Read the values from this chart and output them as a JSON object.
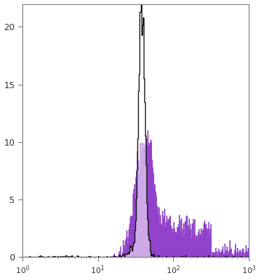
{
  "xlim": [
    1,
    1000
  ],
  "ylim": [
    0,
    22
  ],
  "yticks": [
    0,
    5,
    10,
    15,
    20
  ],
  "xtick_positions": [
    1,
    10,
    100,
    1000
  ],
  "background_color": "#ffffff",
  "purple_color": "#7B20C0",
  "purple_light_color": "#d4aaee",
  "black_color": "#111111",
  "peak_log_black": 1.58,
  "sigma_log_black": 0.04,
  "peak_log_purple": 1.62,
  "sigma_log_purple": 0.13,
  "n_black": 5000,
  "n_purple": 5000,
  "black_max_scale": 22.0,
  "purple_max_scale": 11.0
}
